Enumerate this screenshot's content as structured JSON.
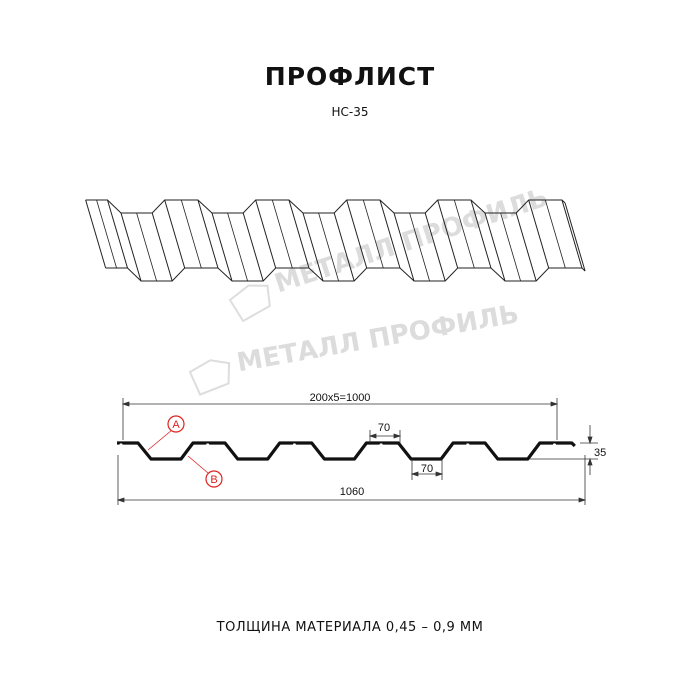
{
  "title": "ПРОФЛИСТ",
  "model": "НС-35",
  "watermark": "МЕТАЛЛ ПРОФИЛЬ",
  "dimensions": {
    "pitch_total": "200x5=1000",
    "full_width": "1060",
    "height": "35",
    "top_flat": "70",
    "bottom_flat": "70"
  },
  "callouts": [
    "A",
    "B"
  ],
  "thickness_label": "ТОЛЩИНА МАТЕРИАЛА 0,45 – 0,9 ММ",
  "colors": {
    "line": "#111111",
    "callout": "#e02020",
    "watermark": "#d9d9d9"
  }
}
